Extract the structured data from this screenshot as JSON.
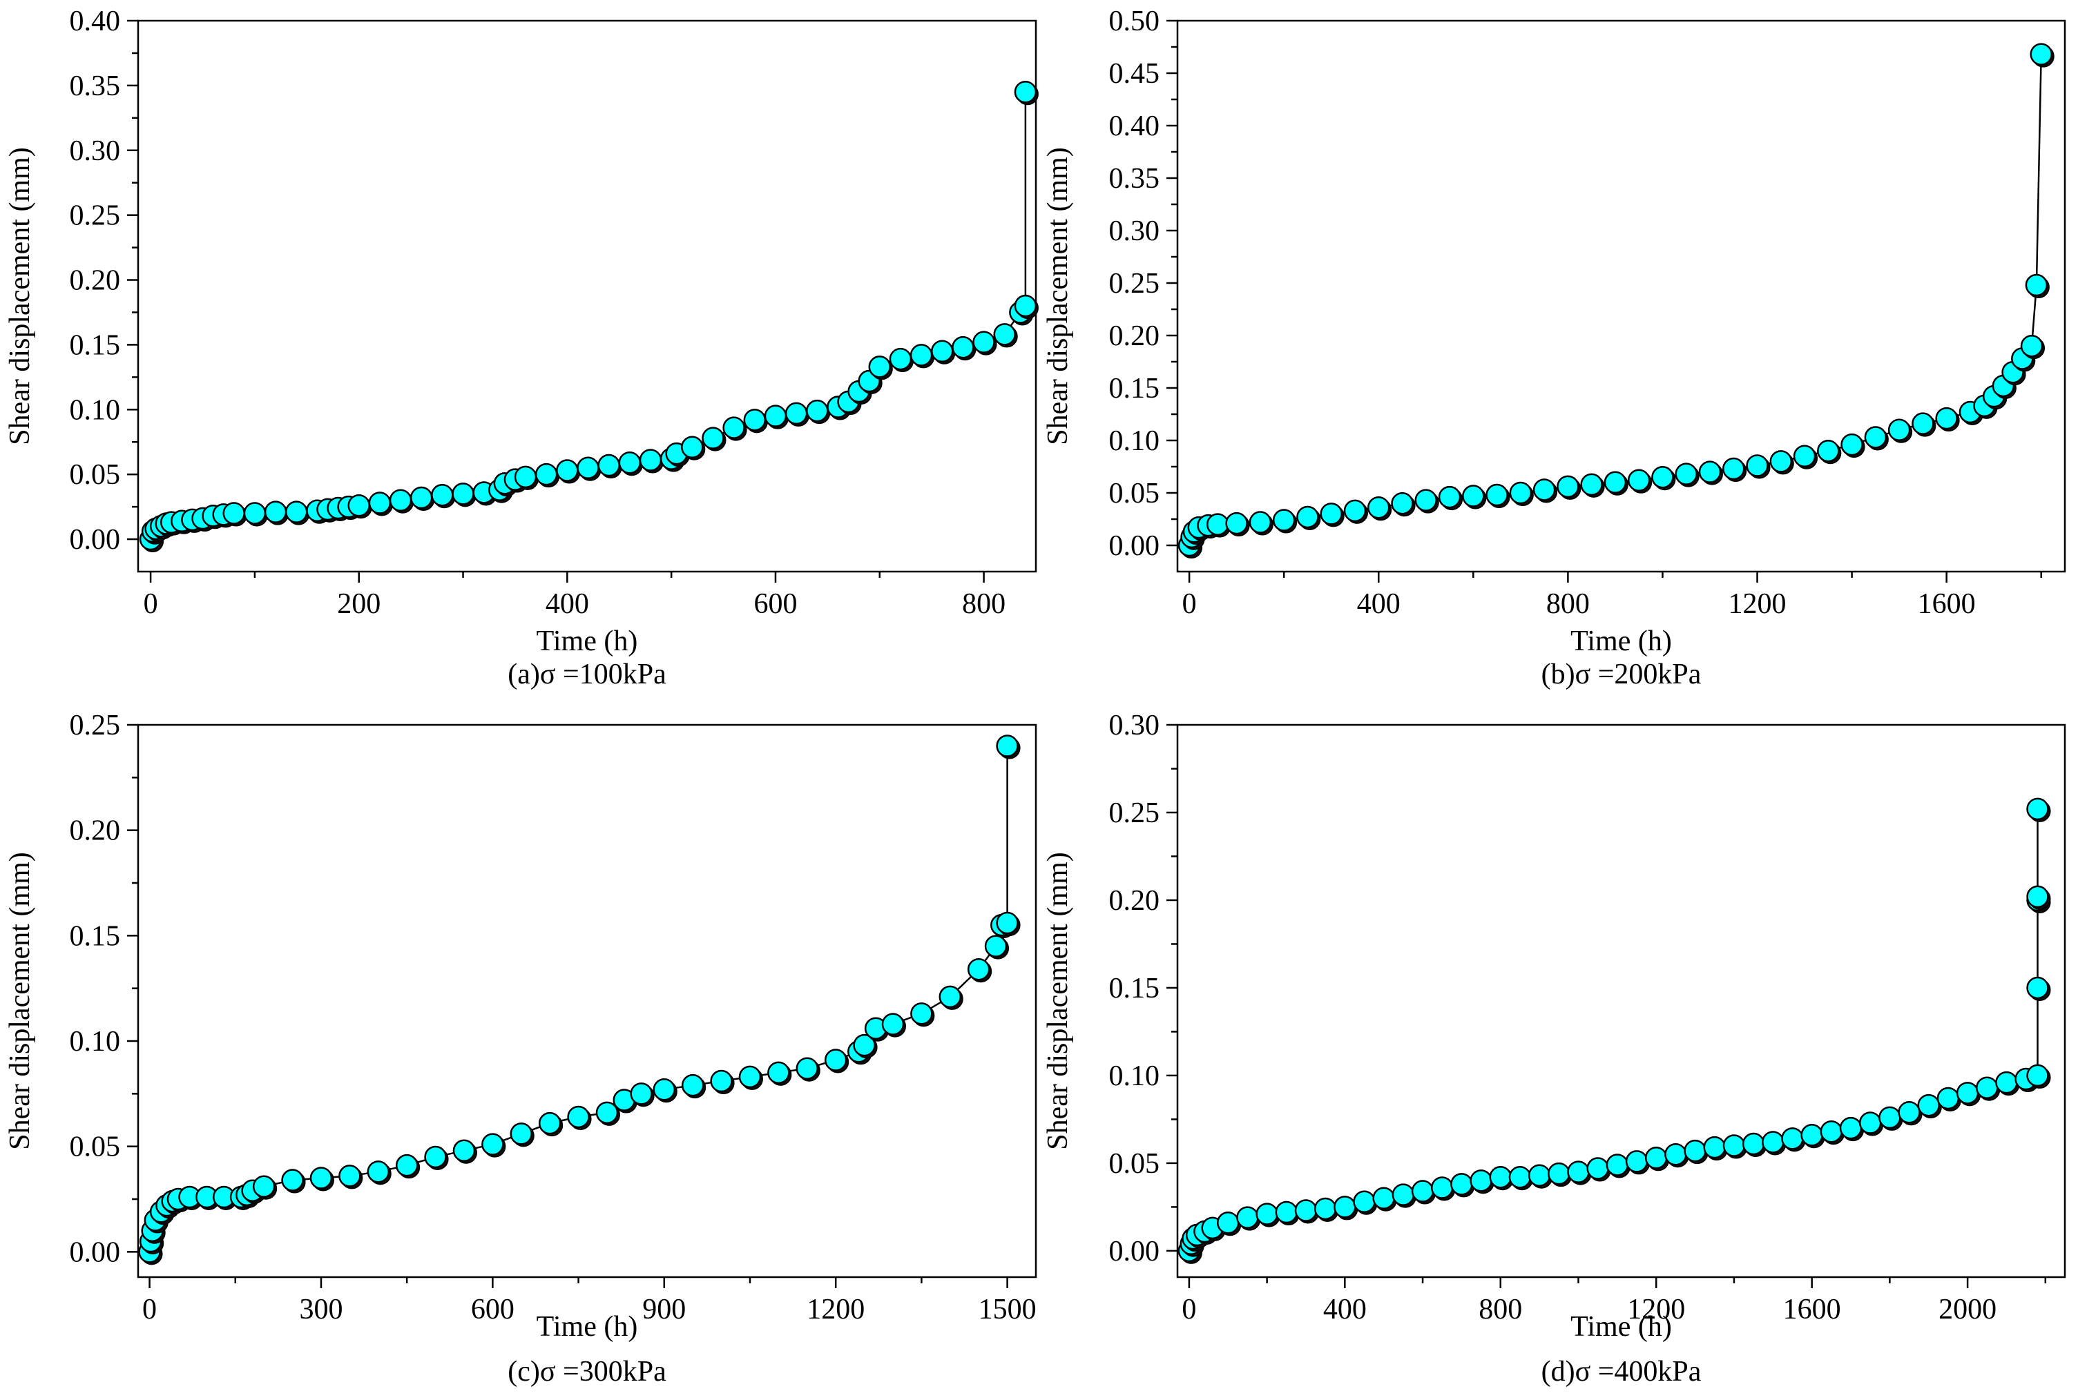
{
  "figure": {
    "marker_fill": "#00FFFF",
    "marker_edge": "#000000",
    "line_color": "#000000"
  },
  "chart_data": [
    {
      "type": "scatter",
      "caption": "(a)σ =100kPa",
      "xlabel": "Time (h)",
      "ylabel": "Shear displacement (mm)",
      "xlim": [
        -12,
        850
      ],
      "ylim": [
        -0.025,
        0.4
      ],
      "xticks": [
        0,
        200,
        400,
        600,
        800
      ],
      "xtick_labels": [
        "0",
        "200",
        "400",
        "600",
        "800"
      ],
      "yticks": [
        0.0,
        0.05,
        0.1,
        0.15,
        0.2,
        0.25,
        0.3,
        0.35,
        0.4
      ],
      "ytick_labels": [
        "0.00",
        "0.05",
        "0.10",
        "0.15",
        "0.20",
        "0.25",
        "0.30",
        "0.35",
        "0.40"
      ],
      "series": [
        {
          "name": "shear displacement",
          "x": [
            0,
            2,
            5,
            10,
            15,
            20,
            30,
            40,
            50,
            60,
            70,
            80,
            100,
            120,
            140,
            160,
            170,
            180,
            190,
            200,
            220,
            240,
            260,
            280,
            300,
            320,
            335,
            340,
            350,
            360,
            380,
            400,
            420,
            440,
            460,
            480,
            500,
            505,
            520,
            540,
            560,
            580,
            600,
            620,
            640,
            660,
            670,
            680,
            690,
            700,
            720,
            740,
            760,
            780,
            800,
            820,
            835,
            840,
            840
          ],
          "y": [
            0.0,
            0.006,
            0.008,
            0.01,
            0.012,
            0.013,
            0.014,
            0.015,
            0.016,
            0.018,
            0.019,
            0.02,
            0.02,
            0.021,
            0.021,
            0.022,
            0.023,
            0.024,
            0.025,
            0.026,
            0.028,
            0.03,
            0.032,
            0.034,
            0.035,
            0.036,
            0.038,
            0.043,
            0.046,
            0.048,
            0.05,
            0.053,
            0.055,
            0.057,
            0.059,
            0.061,
            0.062,
            0.066,
            0.071,
            0.078,
            0.086,
            0.092,
            0.095,
            0.097,
            0.099,
            0.102,
            0.106,
            0.114,
            0.122,
            0.133,
            0.139,
            0.142,
            0.145,
            0.148,
            0.152,
            0.158,
            0.175,
            0.18,
            0.345
          ]
        }
      ]
    },
    {
      "type": "scatter",
      "caption": "(b)σ =200kPa",
      "xlabel": "Time (h)",
      "ylabel": "Shear displacement (mm)",
      "xlim": [
        -25,
        1850
      ],
      "ylim": [
        -0.025,
        0.5
      ],
      "xticks": [
        0,
        400,
        800,
        1200,
        1600
      ],
      "xtick_labels": [
        "0",
        "400",
        "800",
        "1200",
        "1600"
      ],
      "yticks": [
        0.0,
        0.05,
        0.1,
        0.15,
        0.2,
        0.25,
        0.3,
        0.35,
        0.4,
        0.45,
        0.5
      ],
      "ytick_labels": [
        "0.00",
        "0.05",
        "0.10",
        "0.15",
        "0.20",
        "0.25",
        "0.30",
        "0.35",
        "0.40",
        "0.45",
        "0.50"
      ],
      "series": [
        {
          "name": "shear displacement",
          "x": [
            0,
            5,
            10,
            20,
            40,
            60,
            100,
            150,
            200,
            250,
            300,
            350,
            400,
            450,
            500,
            550,
            600,
            650,
            700,
            750,
            800,
            850,
            900,
            950,
            1000,
            1050,
            1100,
            1150,
            1200,
            1250,
            1300,
            1350,
            1400,
            1450,
            1500,
            1550,
            1600,
            1650,
            1680,
            1700,
            1720,
            1740,
            1760,
            1780,
            1790,
            1800
          ],
          "y": [
            0.0,
            0.008,
            0.013,
            0.017,
            0.019,
            0.02,
            0.021,
            0.022,
            0.024,
            0.027,
            0.03,
            0.033,
            0.036,
            0.04,
            0.043,
            0.046,
            0.047,
            0.048,
            0.05,
            0.053,
            0.056,
            0.058,
            0.06,
            0.062,
            0.065,
            0.068,
            0.07,
            0.073,
            0.076,
            0.08,
            0.085,
            0.09,
            0.096,
            0.103,
            0.11,
            0.116,
            0.121,
            0.127,
            0.133,
            0.142,
            0.152,
            0.165,
            0.178,
            0.19,
            0.248,
            0.468
          ]
        }
      ]
    },
    {
      "type": "scatter",
      "caption": "(c)σ =300kPa",
      "xlabel": "Time (h)",
      "ylabel": "Shear displacement (mm)",
      "xlim": [
        -20,
        1550
      ],
      "ylim": [
        -0.012,
        0.25
      ],
      "xticks": [
        0,
        300,
        600,
        900,
        1200,
        1500
      ],
      "xtick_labels": [
        "0",
        "300",
        "600",
        "900",
        "1200",
        "1500"
      ],
      "yticks": [
        0.0,
        0.05,
        0.1,
        0.15,
        0.2,
        0.25
      ],
      "ytick_labels": [
        "0.00",
        "0.05",
        "0.10",
        "0.15",
        "0.20",
        "0.25"
      ],
      "series": [
        {
          "name": "shear displacement",
          "x": [
            0,
            2,
            5,
            10,
            20,
            30,
            40,
            50,
            70,
            100,
            130,
            160,
            170,
            180,
            200,
            250,
            300,
            350,
            400,
            450,
            500,
            550,
            600,
            650,
            700,
            750,
            800,
            830,
            860,
            900,
            950,
            1000,
            1050,
            1100,
            1150,
            1200,
            1240,
            1250,
            1270,
            1300,
            1350,
            1400,
            1450,
            1480,
            1490,
            1500,
            1500
          ],
          "y": [
            0.0,
            0.005,
            0.01,
            0.015,
            0.019,
            0.022,
            0.024,
            0.025,
            0.026,
            0.026,
            0.026,
            0.026,
            0.027,
            0.029,
            0.031,
            0.034,
            0.035,
            0.036,
            0.038,
            0.041,
            0.045,
            0.048,
            0.051,
            0.056,
            0.061,
            0.064,
            0.066,
            0.072,
            0.075,
            0.077,
            0.079,
            0.081,
            0.083,
            0.085,
            0.087,
            0.091,
            0.095,
            0.098,
            0.106,
            0.108,
            0.113,
            0.121,
            0.134,
            0.145,
            0.155,
            0.156,
            0.24
          ]
        }
      ]
    },
    {
      "type": "scatter",
      "caption": "(d)σ =400kPa",
      "xlabel": "Time (h)",
      "ylabel": "Shear displacement (mm)",
      "xlim": [
        -30,
        2250
      ],
      "ylim": [
        -0.015,
        0.3
      ],
      "xticks": [
        0,
        400,
        800,
        1200,
        1600,
        2000
      ],
      "xtick_labels": [
        "0",
        "400",
        "800",
        "1200",
        "1600",
        "2000"
      ],
      "yticks": [
        0.0,
        0.05,
        0.1,
        0.15,
        0.2,
        0.25,
        0.3
      ],
      "ytick_labels": [
        "0.00",
        "0.05",
        "0.10",
        "0.15",
        "0.20",
        "0.25",
        "0.30"
      ],
      "series": [
        {
          "name": "shear displacement",
          "x": [
            0,
            5,
            10,
            20,
            40,
            60,
            100,
            150,
            200,
            250,
            300,
            350,
            400,
            450,
            500,
            550,
            600,
            650,
            700,
            750,
            800,
            850,
            900,
            950,
            1000,
            1050,
            1100,
            1150,
            1200,
            1250,
            1300,
            1350,
            1400,
            1450,
            1500,
            1550,
            1600,
            1650,
            1700,
            1750,
            1800,
            1850,
            1900,
            1950,
            2000,
            2050,
            2100,
            2150,
            2180,
            2180,
            2180,
            2180,
            2180
          ],
          "y": [
            0.0,
            0.004,
            0.007,
            0.009,
            0.011,
            0.013,
            0.016,
            0.019,
            0.021,
            0.022,
            0.023,
            0.024,
            0.025,
            0.028,
            0.03,
            0.032,
            0.034,
            0.036,
            0.038,
            0.04,
            0.042,
            0.042,
            0.043,
            0.044,
            0.045,
            0.047,
            0.049,
            0.051,
            0.053,
            0.055,
            0.057,
            0.059,
            0.06,
            0.061,
            0.062,
            0.064,
            0.066,
            0.068,
            0.07,
            0.073,
            0.076,
            0.079,
            0.083,
            0.087,
            0.09,
            0.093,
            0.096,
            0.098,
            0.1,
            0.15,
            0.2,
            0.202,
            0.252
          ]
        }
      ]
    }
  ]
}
